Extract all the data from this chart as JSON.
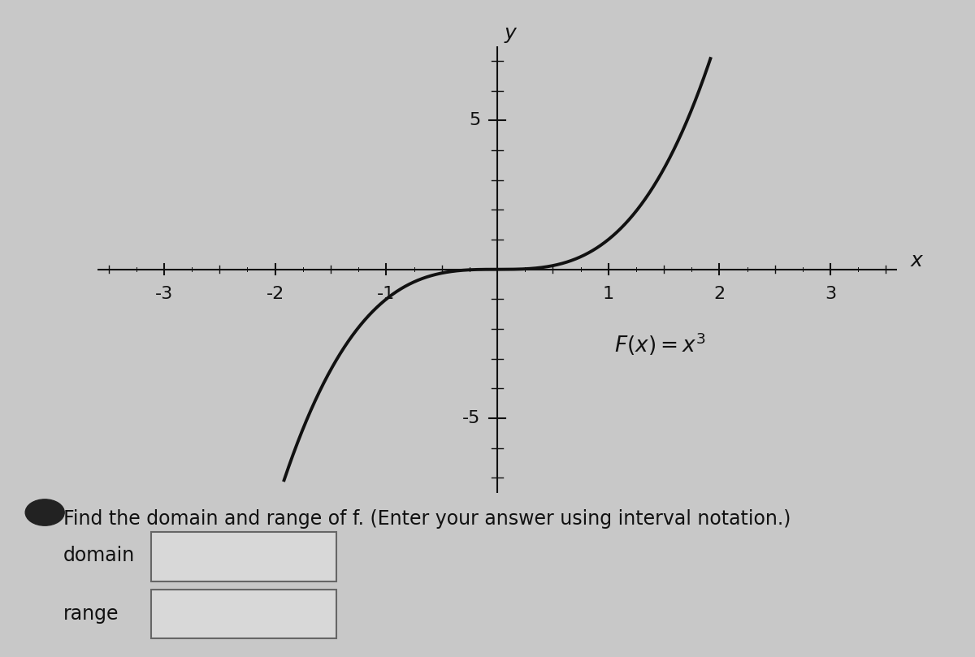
{
  "bg_color": "#c8c8c8",
  "xlim": [
    -3.6,
    3.6
  ],
  "ylim": [
    -7.5,
    7.5
  ],
  "xticks": [
    -3,
    -2,
    -1,
    1,
    2,
    3
  ],
  "yticks": [
    -5,
    5
  ],
  "x_label": "x",
  "y_label": "y",
  "curve_color": "#111111",
  "curve_linewidth": 2.8,
  "axis_color": "#111111",
  "tick_color": "#111111",
  "formula_text": "$F(x) = x^3$",
  "formula_x": 1.05,
  "formula_y": -2.5,
  "formula_fontsize": 19,
  "instruction_text": "Find the domain and range of f. (Enter your answer using interval notation.)",
  "domain_label": "domain",
  "range_label": "range",
  "text_fontsize": 17,
  "label_fontsize": 17,
  "tick_fontsize": 16,
  "axis_label_fontsize": 18,
  "x_curve_min": -1.92,
  "x_curve_max": 1.92
}
